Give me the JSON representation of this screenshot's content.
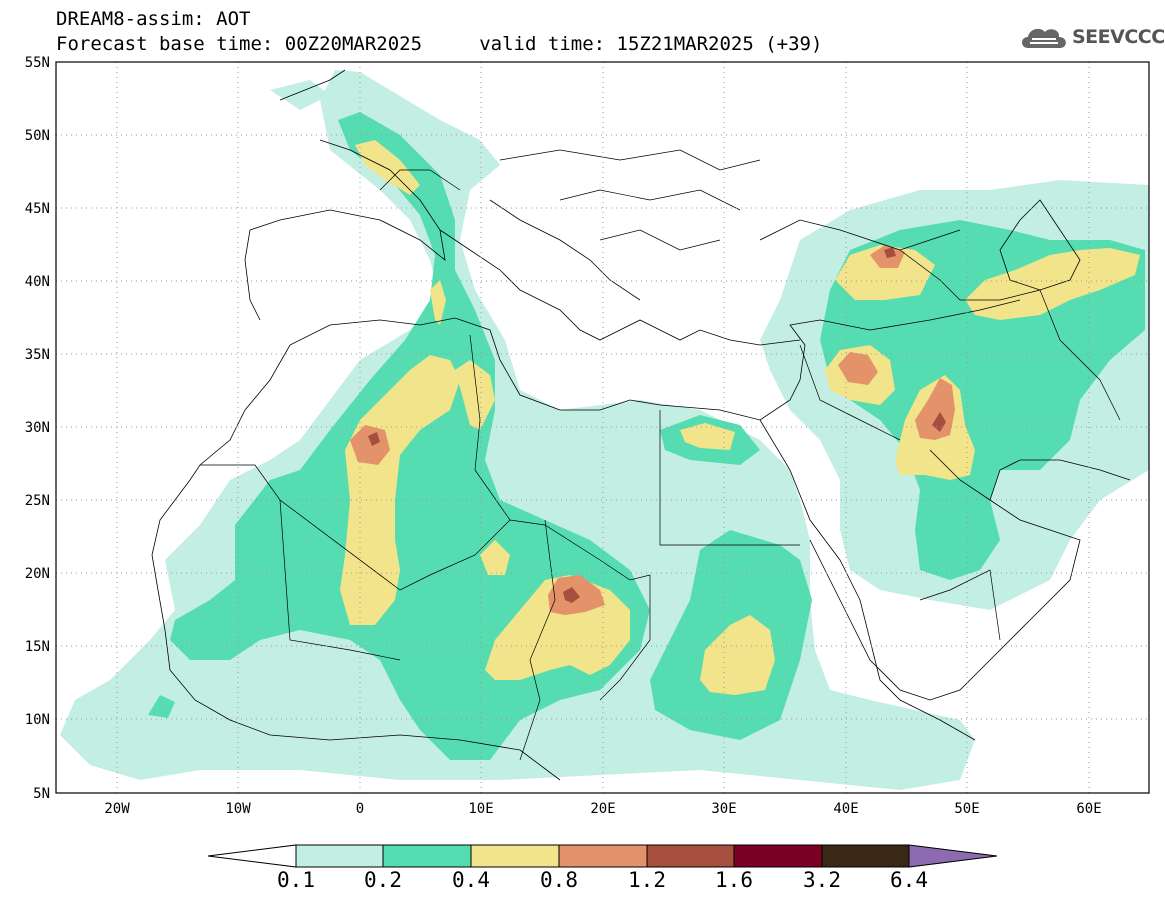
{
  "header": {
    "line1": "DREAM8-assim: AOT",
    "line2": "Forecast base time: 00Z20MAR2025     valid time: 15Z21MAR2025 (+39)"
  },
  "logo": {
    "text": "SEEVCCC",
    "icon": "cloud-icon"
  },
  "map": {
    "lat_labels": [
      "55N",
      "50N",
      "45N",
      "40N",
      "35N",
      "30N",
      "25N",
      "20N",
      "15N",
      "10N",
      "5N"
    ],
    "lon_labels": [
      "20W",
      "10W",
      "0",
      "10E",
      "20E",
      "30E",
      "40E",
      "50E",
      "60E"
    ]
  },
  "colorbar": {
    "labels": [
      "0.1",
      "0.2",
      "0.4",
      "0.8",
      "1.2",
      "1.6",
      "3.2",
      "6.4"
    ],
    "colors": [
      "#ffffff",
      "#c2eee3",
      "#55ddb1",
      "#f2e48a",
      "#e4926a",
      "#a64f3e",
      "#7a0025",
      "#3a2816",
      "#8c6bb0"
    ]
  },
  "palette": {
    "aot_01": "#c2eee3",
    "aot_02": "#55ddb1",
    "aot_04": "#f2e48a",
    "aot_08": "#e4926a",
    "aot_12": "#a64f3e"
  }
}
